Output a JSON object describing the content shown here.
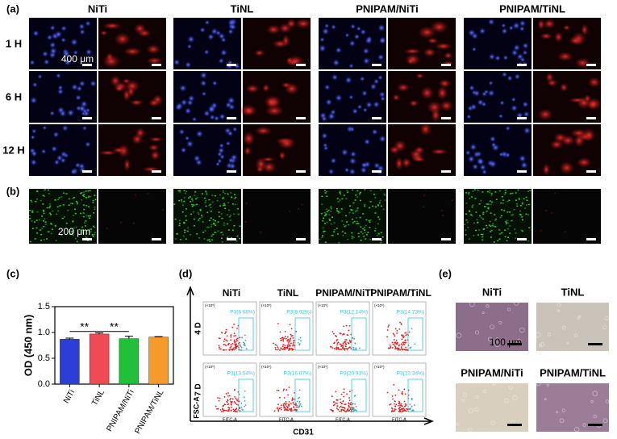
{
  "panel_a": {
    "label": "(a)",
    "columns": [
      "NiTi",
      "TiNL",
      "PNIPAM/NiTi",
      "PNIPAM/TiNL"
    ],
    "rows": [
      "1 H",
      "6 H",
      "12 H"
    ],
    "scale_bar": "400 μm"
  },
  "panel_b": {
    "label": "(b)",
    "scale_bar": "200 μm"
  },
  "chart_data": {
    "type": "bar",
    "label": "(c)",
    "y_label": "OD (450 nm)",
    "categories": [
      "NiTi",
      "TiNL",
      "PNIPAM/NiTi",
      "PNIPAM/TiNL"
    ],
    "values": [
      0.87,
      0.97,
      0.88,
      0.91
    ],
    "errors": [
      0.02,
      0.02,
      0.05,
      0.01
    ],
    "colors": [
      "#2b3fd8",
      "#f04a55",
      "#22c03a",
      "#f79a2c"
    ],
    "ylim": [
      0,
      1.5
    ],
    "yticks": [
      {
        "value": 0,
        "label": "0.0"
      },
      {
        "value": 0.5,
        "label": "0.5"
      },
      {
        "value": 1,
        "label": "1.0"
      },
      {
        "value": 1.5,
        "label": "1.5"
      }
    ],
    "annotations": [
      "**",
      "**"
    ]
  },
  "panel_d": {
    "label": "(d)",
    "columns": [
      "NiTi",
      "TiNL",
      "PNIPAM/NiTi",
      "PNIPAM/TiNL"
    ],
    "rows": [
      "4 D",
      "7 D"
    ],
    "y_label": "FSC-A",
    "x_label": "CD31",
    "plot_x_label": "FITC-A",
    "plot_y_scale": "(×10⁵)",
    "gates": [
      [
        "P3(6.68%)",
        "P3(8.92%)",
        "P3(12.14%)",
        "P3(14.73%)"
      ],
      [
        "P3(13.54%)",
        "P3(16.87%)",
        "P3(20.91%)",
        "P3(23.34%)"
      ]
    ]
  },
  "panel_e": {
    "label": "(e)",
    "titles": [
      "NiTi",
      "TiNL",
      "PNIPAM/NiTi",
      "PNIPAM/TiNL"
    ],
    "scale_bar": "100 μm"
  }
}
